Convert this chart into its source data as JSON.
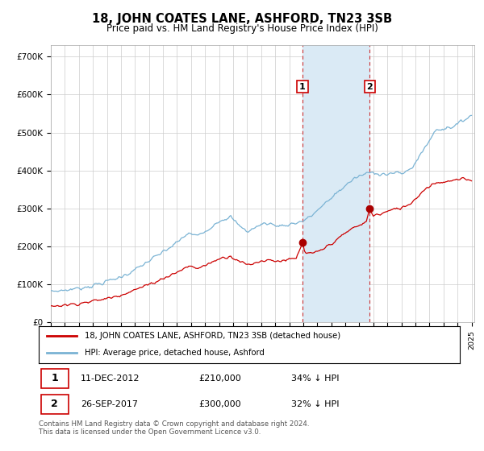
{
  "title": "18, JOHN COATES LANE, ASHFORD, TN23 3SB",
  "subtitle": "Price paid vs. HM Land Registry's House Price Index (HPI)",
  "ylabel_ticks": [
    "£0",
    "£100K",
    "£200K",
    "£300K",
    "£400K",
    "£500K",
    "£600K",
    "£700K"
  ],
  "ytick_values": [
    0,
    100000,
    200000,
    300000,
    400000,
    500000,
    600000,
    700000
  ],
  "ylim": [
    0,
    730000
  ],
  "xlim_start": 1995.0,
  "xlim_end": 2025.2,
  "hpi_color": "#7ab3d4",
  "price_color": "#cc0000",
  "marker_color": "#aa0000",
  "highlight_fill": "#daeaf5",
  "highlight_edge": "#cc3333",
  "transaction1_date": 2012.95,
  "transaction1_price": 210000,
  "transaction2_date": 2017.75,
  "transaction2_price": 300000,
  "legend_label1": "18, JOHN COATES LANE, ASHFORD, TN23 3SB (detached house)",
  "legend_label2": "HPI: Average price, detached house, Ashford",
  "note1_label": "1",
  "note1_date": "11-DEC-2012",
  "note1_price": "£210,000",
  "note1_hpi": "34% ↓ HPI",
  "note2_label": "2",
  "note2_date": "26-SEP-2017",
  "note2_price": "£300,000",
  "note2_hpi": "32% ↓ HPI",
  "footer": "Contains HM Land Registry data © Crown copyright and database right 2024.\nThis data is licensed under the Open Government Licence v3.0.",
  "background_color": "#ffffff",
  "grid_color": "#cccccc",
  "hpi_anchors": [
    [
      1995.0,
      82000
    ],
    [
      1996.0,
      85000
    ],
    [
      1997.0,
      90000
    ],
    [
      1998.0,
      97000
    ],
    [
      1999.0,
      108000
    ],
    [
      2000.0,
      120000
    ],
    [
      2001.0,
      138000
    ],
    [
      2002.0,
      162000
    ],
    [
      2003.0,
      185000
    ],
    [
      2004.0,
      210000
    ],
    [
      2004.8,
      235000
    ],
    [
      2005.5,
      228000
    ],
    [
      2006.0,
      240000
    ],
    [
      2007.0,
      268000
    ],
    [
      2007.8,
      278000
    ],
    [
      2008.5,
      252000
    ],
    [
      2009.0,
      240000
    ],
    [
      2009.5,
      248000
    ],
    [
      2010.0,
      258000
    ],
    [
      2010.5,
      262000
    ],
    [
      2011.0,
      255000
    ],
    [
      2011.5,
      255000
    ],
    [
      2012.0,
      258000
    ],
    [
      2012.5,
      262000
    ],
    [
      2013.0,
      268000
    ],
    [
      2013.5,
      278000
    ],
    [
      2014.0,
      295000
    ],
    [
      2014.5,
      310000
    ],
    [
      2015.0,
      328000
    ],
    [
      2015.5,
      345000
    ],
    [
      2016.0,
      360000
    ],
    [
      2016.5,
      375000
    ],
    [
      2017.0,
      385000
    ],
    [
      2017.5,
      392000
    ],
    [
      2018.0,
      395000
    ],
    [
      2018.5,
      392000
    ],
    [
      2019.0,
      390000
    ],
    [
      2019.5,
      393000
    ],
    [
      2020.0,
      392000
    ],
    [
      2020.5,
      400000
    ],
    [
      2021.0,
      420000
    ],
    [
      2021.5,
      450000
    ],
    [
      2022.0,
      480000
    ],
    [
      2022.5,
      508000
    ],
    [
      2023.0,
      510000
    ],
    [
      2023.5,
      515000
    ],
    [
      2024.0,
      520000
    ],
    [
      2024.5,
      535000
    ],
    [
      2024.9,
      545000
    ]
  ],
  "price_anchors": [
    [
      1995.0,
      43000
    ],
    [
      1996.0,
      46000
    ],
    [
      1997.0,
      50000
    ],
    [
      1998.0,
      56000
    ],
    [
      1999.0,
      63000
    ],
    [
      2000.0,
      73000
    ],
    [
      2001.0,
      86000
    ],
    [
      2002.0,
      100000
    ],
    [
      2003.0,
      116000
    ],
    [
      2004.0,
      132000
    ],
    [
      2004.8,
      148000
    ],
    [
      2005.5,
      143000
    ],
    [
      2006.0,
      150000
    ],
    [
      2007.0,
      168000
    ],
    [
      2007.8,
      175000
    ],
    [
      2008.5,
      160000
    ],
    [
      2009.0,
      152000
    ],
    [
      2009.5,
      156000
    ],
    [
      2010.0,
      162000
    ],
    [
      2010.5,
      165000
    ],
    [
      2011.0,
      162000
    ],
    [
      2011.5,
      163000
    ],
    [
      2012.0,
      165000
    ],
    [
      2012.5,
      168000
    ],
    [
      2012.95,
      210000
    ],
    [
      2013.1,
      185000
    ],
    [
      2013.5,
      180000
    ],
    [
      2014.0,
      185000
    ],
    [
      2014.5,
      195000
    ],
    [
      2015.0,
      208000
    ],
    [
      2015.5,
      220000
    ],
    [
      2016.0,
      235000
    ],
    [
      2016.5,
      248000
    ],
    [
      2017.0,
      255000
    ],
    [
      2017.5,
      265000
    ],
    [
      2017.75,
      300000
    ],
    [
      2018.0,
      282000
    ],
    [
      2018.5,
      285000
    ],
    [
      2019.0,
      292000
    ],
    [
      2019.5,
      298000
    ],
    [
      2020.0,
      302000
    ],
    [
      2020.5,
      310000
    ],
    [
      2021.0,
      325000
    ],
    [
      2021.5,
      345000
    ],
    [
      2022.0,
      360000
    ],
    [
      2022.5,
      368000
    ],
    [
      2023.0,
      370000
    ],
    [
      2023.5,
      372000
    ],
    [
      2024.0,
      375000
    ],
    [
      2024.5,
      378000
    ],
    [
      2024.9,
      375000
    ]
  ]
}
